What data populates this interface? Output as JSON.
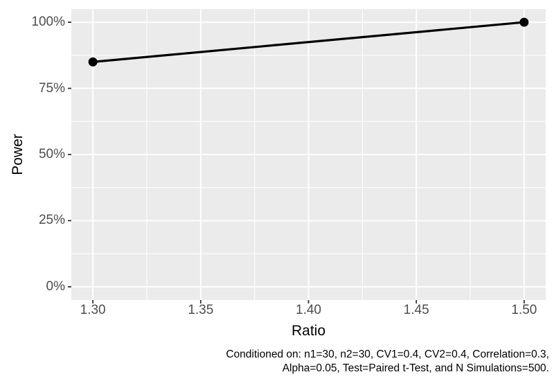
{
  "chart": {
    "title": "",
    "legend": "none"
  },
  "caption": {
    "line1": "Conditioned on: n1=30, n2=30, CV1=0.4, CV2=0.4, Correlation=0.3,",
    "line2": "Alpha=0.05, Test=Paired t-Test, and N Simulations=500.",
    "full": "Conditioned on: n1=30, n2=30, CV1=0.4, CV2=0.4, Correlation=0.3, Alpha=0.05, Test=Paired t-Test, and N Simulations=500."
  },
  "chart_data": {
    "type": "line",
    "title": "",
    "xlabel": "Ratio",
    "ylabel": "Power",
    "series": [
      {
        "name": "Power",
        "x": [
          1.3,
          1.5
        ],
        "values": [
          0.85,
          1.0
        ]
      }
    ],
    "x_ticks": [
      1.3,
      1.35,
      1.4,
      1.45,
      1.5
    ],
    "x_tick_labels": [
      "1.30",
      "1.35",
      "1.40",
      "1.45",
      "1.50"
    ],
    "y_ticks": [
      0,
      0.25,
      0.5,
      0.75,
      1.0
    ],
    "y_tick_labels": [
      "0%",
      "25%",
      "50%",
      "75%",
      "100%"
    ],
    "xlim": [
      1.29,
      1.51
    ],
    "ylim": [
      -0.05,
      1.05
    ],
    "grid": "white major and minor gridlines on gray panel, minors at midpoints",
    "legend_position": "none",
    "colors": {
      "page_bg": "#FFFFFF",
      "panel_bg": "#EBEBEB",
      "grid": "#FFFFFF",
      "line": "#000000",
      "point": "#000000",
      "tick_mark": "#333333",
      "tick_label": "#4D4D4D",
      "axis_title": "#000000",
      "caption": "#000000"
    }
  }
}
